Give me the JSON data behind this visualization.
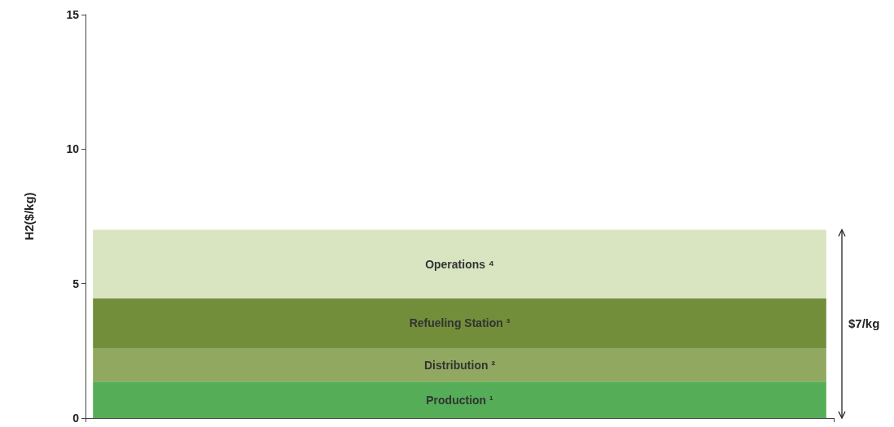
{
  "chart_data": {
    "type": "bar",
    "stacked": true,
    "ylabel": "H2($/kg)",
    "categories": [
      null
    ],
    "ylim": [
      0,
      15
    ],
    "yticks": [
      0,
      5,
      10,
      15
    ],
    "grid": false,
    "legend": false,
    "series": [
      {
        "name": "Production ¹",
        "color": "#55ae57",
        "values": [
          1.35
        ]
      },
      {
        "name": "Distribution ²",
        "color": "#91a860",
        "values": [
          1.25
        ]
      },
      {
        "name": "Refueling Station ³",
        "color": "#728e3a",
        "values": [
          1.85
        ]
      },
      {
        "name": "Operations ⁴",
        "color": "#d9e4c1",
        "values": [
          2.55
        ]
      }
    ],
    "totals": [
      "$7/kg"
    ]
  }
}
